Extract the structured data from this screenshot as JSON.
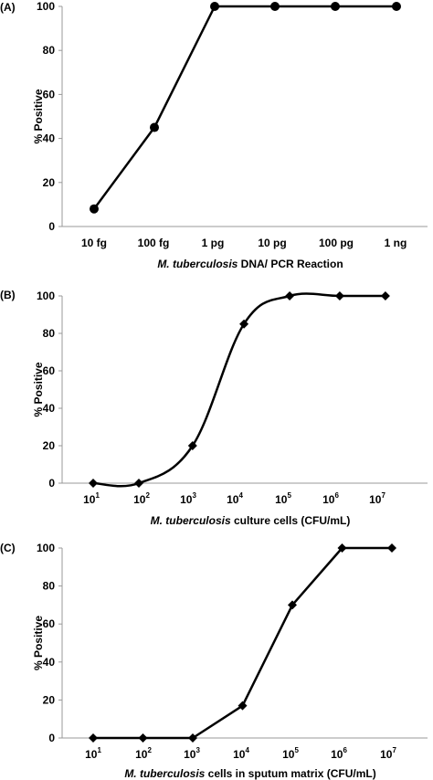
{
  "chart_data": [
    {
      "type": "line",
      "panel_label": "(A)",
      "x": [
        "10 fg",
        "100 fg",
        "1 pg",
        "10 pg",
        "100 pg",
        "1 ng"
      ],
      "series": [
        {
          "values": [
            8,
            45,
            100,
            100,
            100,
            100
          ],
          "marker": "circle"
        }
      ],
      "xlabel_italic": "M. tuberculosis",
      "xlabel_rest": " DNA/ PCR Reaction",
      "ylabel": "% Positive",
      "ylim": [
        0,
        100
      ],
      "yticks": [
        "0",
        "20",
        "40",
        "60",
        "80",
        "100"
      ],
      "grid": false
    },
    {
      "type": "line",
      "panel_label": "(B)",
      "x_scale": "log10",
      "x": [
        10,
        100,
        1500,
        20000,
        200000,
        2500000,
        25000000
      ],
      "x_ticks": [
        {
          "base": "10",
          "exp": "1"
        },
        {
          "base": "10",
          "exp": "2"
        },
        {
          "base": "10",
          "exp": "3"
        },
        {
          "base": "10",
          "exp": "4"
        },
        {
          "base": "10",
          "exp": "5"
        },
        {
          "base": "10",
          "exp": "6"
        },
        {
          "base": "10",
          "exp": "7"
        }
      ],
      "series": [
        {
          "values": [
            0,
            0,
            20,
            85,
            100,
            100,
            100
          ],
          "marker": "diamond"
        }
      ],
      "xlabel_italic": "M. tuberculosis",
      "xlabel_rest": " culture cells (CFU/mL)",
      "ylabel": "% Positive",
      "ylim": [
        0,
        100
      ],
      "yticks": [
        "0",
        "20",
        "40",
        "60",
        "80",
        "100"
      ],
      "grid": false,
      "smooth": true
    },
    {
      "type": "line",
      "panel_label": "(C)",
      "x_scale": "log10",
      "x": [
        10,
        100,
        1000,
        10000,
        100000,
        1000000,
        10000000
      ],
      "x_ticks": [
        {
          "base": "10",
          "exp": "1"
        },
        {
          "base": "10",
          "exp": "2"
        },
        {
          "base": "10",
          "exp": "3"
        },
        {
          "base": "10",
          "exp": "4"
        },
        {
          "base": "10",
          "exp": "5"
        },
        {
          "base": "10",
          "exp": "6"
        },
        {
          "base": "10",
          "exp": "7"
        }
      ],
      "series": [
        {
          "values": [
            0,
            0,
            0,
            17,
            70,
            100,
            100
          ],
          "marker": "diamond"
        }
      ],
      "xlabel_italic": "M. tuberculosis",
      "xlabel_rest": " cells in sputum matrix (CFU/mL)",
      "ylabel": "% Positive",
      "ylim": [
        0,
        100
      ],
      "yticks": [
        "0",
        "20",
        "40",
        "60",
        "80",
        "100"
      ],
      "grid": false
    }
  ]
}
